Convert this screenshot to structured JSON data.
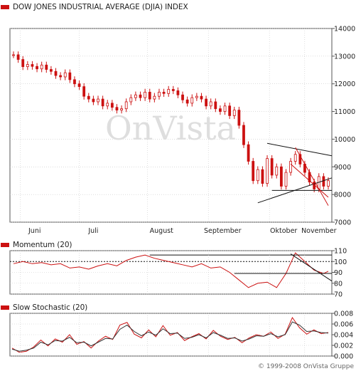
{
  "chart_data": [
    {
      "type": "candlestick",
      "title": "DOW JONES INDUSTRIAL AVERAGE (DJIA) INDEX",
      "watermark": "OnVista",
      "x_months": [
        "Juni",
        "Juli",
        "August",
        "September",
        "Oktober",
        "November"
      ],
      "y_ticks": [
        "14000",
        "13000",
        "12000",
        "11000",
        "10000",
        "9000",
        "8000",
        "7000"
      ],
      "ylim": [
        7000,
        14000
      ],
      "color": "#cc1111",
      "x_close": [
        [
          0,
          13050
        ],
        [
          2,
          12880
        ],
        [
          4,
          12620
        ],
        [
          6,
          12700
        ],
        [
          8,
          12630
        ],
        [
          10,
          12540
        ],
        [
          12,
          12680
        ],
        [
          14,
          12520
        ],
        [
          16,
          12450
        ],
        [
          18,
          12300
        ],
        [
          20,
          12250
        ],
        [
          22,
          12400
        ],
        [
          24,
          12150
        ],
        [
          26,
          12000
        ],
        [
          28,
          11900
        ],
        [
          30,
          11550
        ],
        [
          32,
          11450
        ],
        [
          34,
          11350
        ],
        [
          36,
          11450
        ],
        [
          38,
          11200
        ],
        [
          40,
          11300
        ],
        [
          42,
          11150
        ],
        [
          44,
          11050
        ],
        [
          46,
          11100
        ],
        [
          48,
          11350
        ],
        [
          50,
          11500
        ],
        [
          52,
          11600
        ],
        [
          54,
          11500
        ],
        [
          56,
          11700
        ],
        [
          58,
          11450
        ],
        [
          60,
          11550
        ],
        [
          62,
          11700
        ],
        [
          64,
          11650
        ],
        [
          66,
          11800
        ],
        [
          68,
          11750
        ],
        [
          70,
          11600
        ],
        [
          72,
          11420
        ],
        [
          74,
          11300
        ],
        [
          76,
          11500
        ],
        [
          78,
          11550
        ],
        [
          80,
          11450
        ],
        [
          82,
          11200
        ],
        [
          84,
          11350
        ],
        [
          86,
          11100
        ],
        [
          88,
          11000
        ],
        [
          90,
          11200
        ],
        [
          92,
          10850
        ],
        [
          94,
          11050
        ],
        [
          96,
          10500
        ],
        [
          98,
          9800
        ],
        [
          100,
          9200
        ],
        [
          102,
          8500
        ],
        [
          104,
          8900
        ],
        [
          106,
          8400
        ],
        [
          108,
          9300
        ],
        [
          110,
          8700
        ],
        [
          112,
          9000
        ],
        [
          114,
          8300
        ],
        [
          116,
          8800
        ],
        [
          118,
          9200
        ],
        [
          120,
          9450
        ],
        [
          122,
          9100
        ],
        [
          124,
          8800
        ],
        [
          126,
          8450
        ],
        [
          128,
          8200
        ],
        [
          130,
          8650
        ],
        [
          132,
          8300
        ],
        [
          134,
          8500
        ]
      ]
    },
    {
      "type": "line",
      "title": "Momentum (20)",
      "y_ticks": [
        "110",
        "100",
        "90",
        "80",
        "70"
      ],
      "ylim": [
        70,
        110
      ],
      "x_values": [
        [
          0,
          98
        ],
        [
          4,
          100
        ],
        [
          8,
          98
        ],
        [
          12,
          99
        ],
        [
          16,
          97
        ],
        [
          20,
          98
        ],
        [
          24,
          94
        ],
        [
          28,
          95
        ],
        [
          32,
          93
        ],
        [
          36,
          96
        ],
        [
          40,
          98
        ],
        [
          44,
          96
        ],
        [
          48,
          101
        ],
        [
          52,
          104
        ],
        [
          56,
          106
        ],
        [
          60,
          103
        ],
        [
          64,
          101
        ],
        [
          68,
          99
        ],
        [
          72,
          97
        ],
        [
          76,
          95
        ],
        [
          80,
          98
        ],
        [
          84,
          94
        ],
        [
          88,
          95
        ],
        [
          92,
          90
        ],
        [
          96,
          83
        ],
        [
          100,
          76
        ],
        [
          104,
          80
        ],
        [
          108,
          81
        ],
        [
          112,
          76
        ],
        [
          116,
          89
        ],
        [
          120,
          108
        ],
        [
          124,
          100
        ],
        [
          128,
          92
        ],
        [
          132,
          89
        ],
        [
          134,
          91
        ]
      ]
    },
    {
      "type": "line",
      "title": "Slow Stochastic (20)",
      "y_ticks": [
        "0.008",
        "0.006",
        "0.004",
        "0.002",
        "0.000"
      ],
      "ylim": [
        0,
        0.008
      ],
      "series": [
        {
          "values": [
            0.0015,
            0.0007,
            0.0009,
            0.0017,
            0.003,
            0.0019,
            0.0032,
            0.0026,
            0.004,
            0.0022,
            0.0027,
            0.0015,
            0.0028,
            0.0037,
            0.0031,
            0.0058,
            0.0063,
            0.0041,
            0.0034,
            0.0049,
            0.0036,
            0.0057,
            0.0039,
            0.0044,
            0.0029,
            0.0036,
            0.0042,
            0.0032,
            0.0048,
            0.0037,
            0.0031,
            0.0035,
            0.0025,
            0.0034,
            0.004,
            0.0037,
            0.0045,
            0.0033,
            0.0041,
            0.0072,
            0.0053,
            0.0041,
            0.0049,
            0.0042,
            0.0044
          ]
        },
        {
          "values": [
            0.0013,
            0.0009,
            0.0011,
            0.0015,
            0.0026,
            0.0021,
            0.0029,
            0.0028,
            0.0035,
            0.0025,
            0.0026,
            0.0019,
            0.0026,
            0.0033,
            0.0032,
            0.005,
            0.0058,
            0.0046,
            0.0038,
            0.0045,
            0.0039,
            0.0051,
            0.0042,
            0.0043,
            0.0033,
            0.0035,
            0.004,
            0.0034,
            0.0044,
            0.0039,
            0.0033,
            0.0034,
            0.0028,
            0.0032,
            0.0038,
            0.0037,
            0.0042,
            0.0036,
            0.004,
            0.0064,
            0.0058,
            0.0046,
            0.0047,
            0.0044,
            0.0043
          ]
        }
      ]
    }
  ],
  "copyright": "© 1999-2008 OnVista Gruppe"
}
